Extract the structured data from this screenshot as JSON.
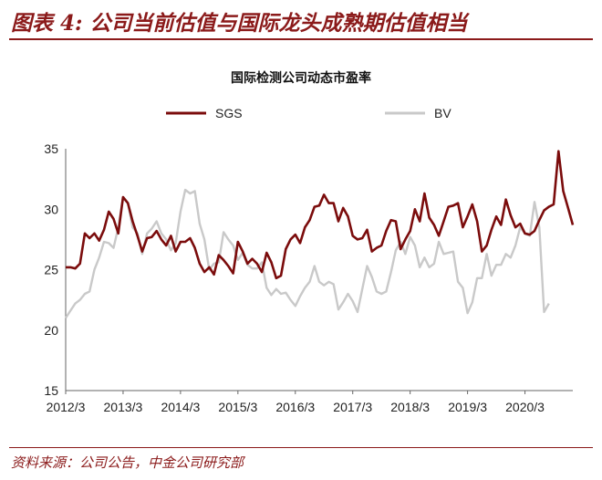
{
  "figure": {
    "title": "图表 4: 公司当前估值与国际龙头成熟期估值相当",
    "source": "资料来源：公司公告，中金公司研究部"
  },
  "chart_data": {
    "type": "line",
    "title": "国际检测公司动态市盈率",
    "ylim": [
      15,
      35
    ],
    "y_ticks": [
      "15",
      "20",
      "25",
      "30",
      "35"
    ],
    "x_ticks": [
      "2012/3",
      "2013/3",
      "2014/3",
      "2015/3",
      "2016/3",
      "2017/3",
      "2018/3",
      "2019/3",
      "2020/3"
    ],
    "x_start": "2012/3",
    "grid": false,
    "legend_position": "top",
    "series": [
      {
        "name": "SGS",
        "color": "#7b0c0c",
        "values": [
          25.2,
          25.2,
          25.1,
          25.5,
          28.0,
          27.6,
          28.0,
          27.4,
          28.3,
          29.8,
          29.2,
          28.0,
          31.0,
          30.5,
          29.0,
          27.8,
          26.5,
          27.6,
          27.7,
          28.2,
          27.5,
          27.0,
          27.8,
          26.5,
          27.3,
          27.3,
          27.6,
          26.8,
          25.5,
          24.8,
          25.2,
          24.6,
          26.2,
          25.8,
          25.3,
          24.7,
          27.3,
          26.5,
          25.5,
          25.9,
          25.5,
          24.8,
          26.4,
          25.6,
          24.3,
          24.5,
          26.7,
          27.5,
          27.9,
          27.2,
          28.5,
          29.1,
          30.2,
          30.3,
          31.2,
          30.5,
          30.5,
          29.0,
          30.1,
          29.4,
          27.8,
          27.5,
          27.6,
          28.3,
          26.5,
          26.8,
          27.0,
          28.2,
          29.1,
          29.0,
          26.7,
          27.5,
          28.2,
          30.0,
          29.0,
          31.3,
          29.3,
          28.7,
          27.8,
          29.0,
          30.2,
          30.3,
          30.5,
          28.5,
          29.4,
          30.4,
          29.0,
          26.5,
          27.0,
          28.3,
          29.4,
          28.7,
          30.8,
          29.5,
          28.5,
          28.8,
          28.0,
          27.9,
          28.2,
          29.1,
          29.9,
          30.2,
          30.4,
          34.8,
          31.5,
          30.1,
          28.7
        ]
      },
      {
        "name": "BV",
        "color": "#c9c9c9",
        "values": [
          21.0,
          21.6,
          22.2,
          22.5,
          23.0,
          23.2,
          25.0,
          26.0,
          27.3,
          27.2,
          26.8,
          28.5,
          31.0,
          30.5,
          28.5,
          28.0,
          26.3,
          28.0,
          28.4,
          29.0,
          28.0,
          27.5,
          26.6,
          27.2,
          29.8,
          31.6,
          31.3,
          31.5,
          28.8,
          27.5,
          25.0,
          25.5,
          25.6,
          28.1,
          27.5,
          27.0,
          25.8,
          26.4,
          25.4,
          25.1,
          25.1,
          25.6,
          23.5,
          22.9,
          23.4,
          23.0,
          23.1,
          22.5,
          22.0,
          22.8,
          23.5,
          24.0,
          25.3,
          24.0,
          23.7,
          24.0,
          23.8,
          21.7,
          22.3,
          23.0,
          22.4,
          21.5,
          23.4,
          25.3,
          24.4,
          23.2,
          23.0,
          23.2,
          24.8,
          26.6,
          27.3,
          26.3,
          27.7,
          27.0,
          25.2,
          26.0,
          25.2,
          25.5,
          27.3,
          26.3,
          26.4,
          26.5,
          24.0,
          23.5,
          21.4,
          22.3,
          24.3,
          24.3,
          26.3,
          24.5,
          25.4,
          25.4,
          26.3,
          26.0,
          27.0,
          28.5,
          28.0,
          27.8,
          30.6,
          28.5,
          21.5,
          22.2
        ]
      }
    ]
  }
}
